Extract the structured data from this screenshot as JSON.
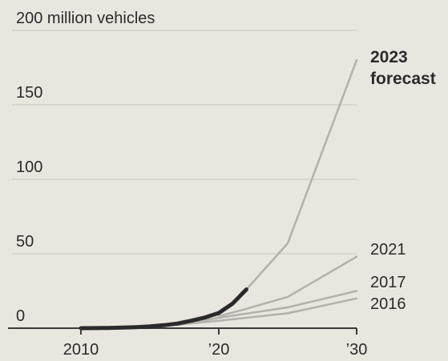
{
  "chart_data": {
    "type": "line",
    "title": "",
    "ylabel": "",
    "xlabel": "",
    "ylim": [
      0,
      200
    ],
    "xlim": [
      2005,
      2030
    ],
    "y_ticks": [
      {
        "value": 0,
        "label": "0"
      },
      {
        "value": 50,
        "label": "50"
      },
      {
        "value": 100,
        "label": "100"
      },
      {
        "value": 150,
        "label": "150"
      },
      {
        "value": 200,
        "label": "200 million vehicles"
      }
    ],
    "x_ticks": [
      {
        "value": 2010,
        "label": "2010"
      },
      {
        "value": 2020,
        "label": "’20"
      },
      {
        "value": 2030,
        "label": "’30"
      }
    ],
    "grid": true,
    "colors": {
      "actual": "#2a2a2a",
      "forecast": "#b3b1ab",
      "grid": "#c9c6bf",
      "background": "#e9e6df"
    },
    "series": [
      {
        "kind": "actual",
        "x": [
          2010,
          2011,
          2012,
          2013,
          2014,
          2015,
          2016,
          2017,
          2018,
          2019,
          2020,
          2021,
          2022
        ],
        "y": [
          0.02,
          0.06,
          0.18,
          0.4,
          0.7,
          1.2,
          2.0,
          3.1,
          5.0,
          7.2,
          10.2,
          16.5,
          26
        ]
      },
      {
        "name": "2023",
        "label_line2": "forecast",
        "kind": "forecast",
        "x": [
          2020,
          2021,
          2022,
          2025,
          2030
        ],
        "y": [
          10,
          16,
          26,
          57,
          180
        ]
      },
      {
        "name": "2021",
        "kind": "forecast",
        "x": [
          2020,
          2022,
          2025,
          2030
        ],
        "y": [
          8,
          13,
          21,
          48
        ]
      },
      {
        "name": "2017",
        "kind": "forecast",
        "x": [
          2017,
          2020,
          2025,
          2030
        ],
        "y": [
          2,
          7,
          14,
          25
        ]
      },
      {
        "name": "2016",
        "kind": "forecast",
        "x": [
          2016,
          2020,
          2025,
          2030
        ],
        "y": [
          1.5,
          5,
          10,
          20
        ]
      }
    ]
  }
}
